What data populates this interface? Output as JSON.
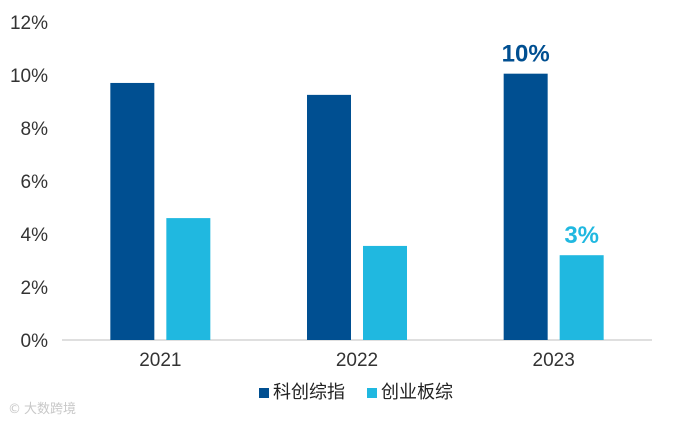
{
  "chart_data": {
    "type": "bar",
    "categories": [
      "2021",
      "2022",
      "2023"
    ],
    "series": [
      {
        "name": "科创综指",
        "values": [
          9.7,
          9.25,
          10.05
        ],
        "color": "#004f91"
      },
      {
        "name": "创业板综",
        "values": [
          4.6,
          3.55,
          3.2
        ],
        "color": "#20b8e0"
      }
    ],
    "ylim": [
      0,
      12
    ],
    "yticks": [
      "0%",
      "2%",
      "4%",
      "6%",
      "8%",
      "10%",
      "12%"
    ],
    "ytick_values": [
      0,
      2,
      4,
      6,
      8,
      10,
      12
    ],
    "data_labels": [
      {
        "series": 0,
        "category": 2,
        "text": "10%",
        "color": "#004f91"
      },
      {
        "series": 1,
        "category": 2,
        "text": "3%",
        "color": "#20b8e0"
      }
    ],
    "legend_position": "bottom-center",
    "grid": false,
    "title": "",
    "xlabel": "",
    "ylabel": ""
  },
  "watermark": "大数跨境"
}
